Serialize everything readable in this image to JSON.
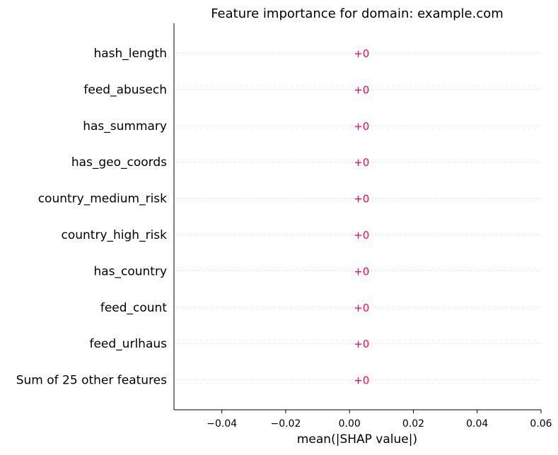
{
  "chart_data": {
    "type": "bar",
    "orientation": "horizontal",
    "title": "Feature importance for domain: example.com",
    "xlabel": "mean(|SHAP value|)",
    "ylabel": "",
    "categories": [
      "hash_length",
      "feed_abusech",
      "has_summary",
      "has_geo_coords",
      "country_medium_risk",
      "country_high_risk",
      "has_country",
      "feed_count",
      "feed_urlhaus",
      "Sum of 25 other features"
    ],
    "values": [
      0,
      0,
      0,
      0,
      0,
      0,
      0,
      0,
      0,
      0
    ],
    "value_labels": [
      "+0",
      "+0",
      "+0",
      "+0",
      "+0",
      "+0",
      "+0",
      "+0",
      "+0",
      "+0"
    ],
    "xlim": [
      -0.055,
      0.06
    ],
    "xticks": [
      -0.04,
      -0.02,
      0.0,
      0.02,
      0.04,
      0.06
    ],
    "xtick_labels": [
      "−0.04",
      "−0.02",
      "0.00",
      "0.02",
      "0.04",
      "0.06"
    ],
    "grid": "horizontal dotted row lines",
    "colors": {
      "value_label": "#ff0051",
      "gridline": "#cccccc",
      "axis": "#000000"
    }
  }
}
